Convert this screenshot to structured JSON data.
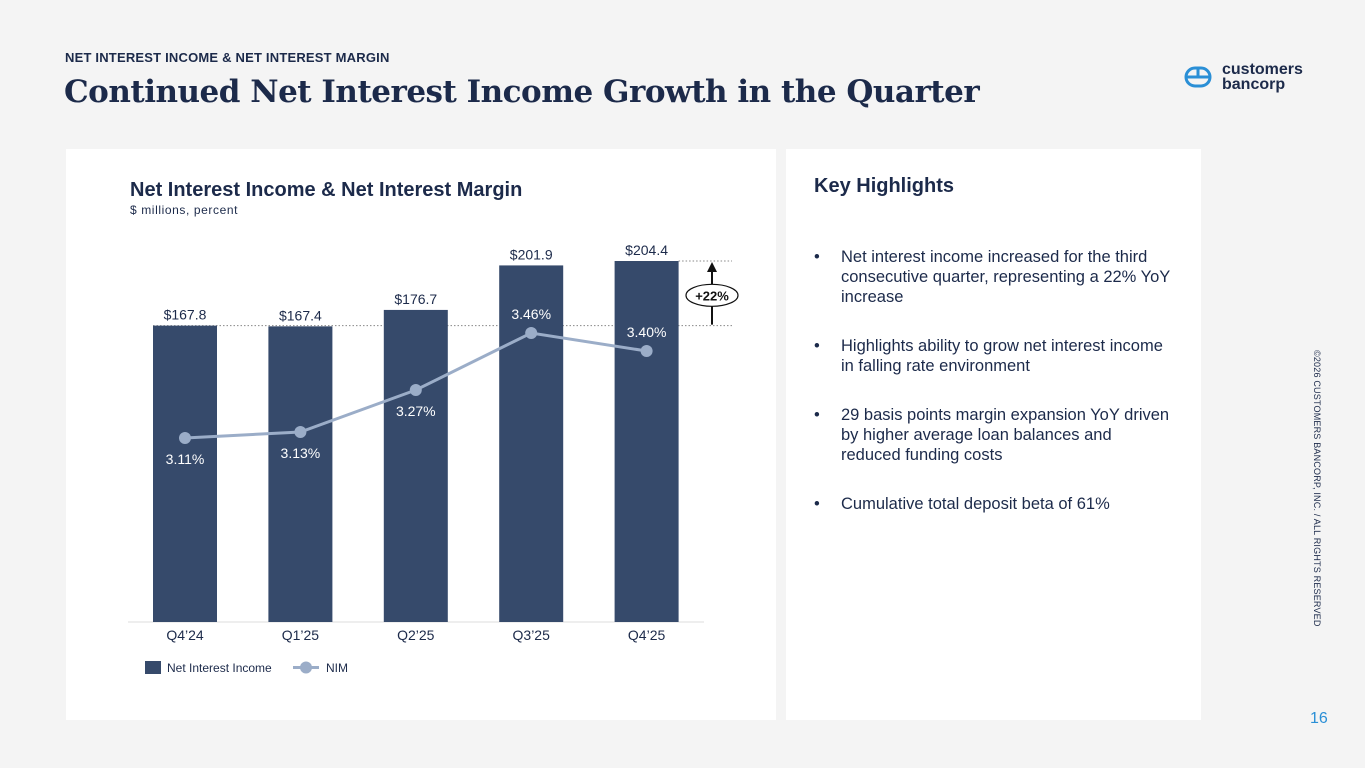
{
  "header": {
    "kicker": "NET INTEREST INCOME & NET INTEREST MARGIN",
    "title": "Continued Net Interest Income Growth in the Quarter"
  },
  "logo": {
    "line1": "customers",
    "line2": "bancorp",
    "icon": "customers-bancorp-logo-icon"
  },
  "chart_data": {
    "type": "bar",
    "title": "Net Interest Income & Net Interest Margin",
    "subtitle": "$ millions, percent",
    "categories": [
      "Q4’24",
      "Q1’25",
      "Q2’25",
      "Q3’25",
      "Q4’25"
    ],
    "series": [
      {
        "name": "Net Interest Income",
        "type": "bar",
        "values": [
          167.8,
          167.4,
          176.7,
          201.9,
          204.4
        ],
        "labels": [
          "$167.8",
          "$167.4",
          "$176.7",
          "$201.9",
          "$204.4"
        ],
        "color": "#364a6b"
      },
      {
        "name": "NIM",
        "type": "line",
        "values": [
          3.11,
          3.13,
          3.27,
          3.46,
          3.4
        ],
        "labels": [
          "3.11%",
          "3.13%",
          "3.27%",
          "3.46%",
          "3.40%"
        ],
        "color": "#9badc8"
      }
    ],
    "annotation": {
      "text": "+22%",
      "from_category": "Q4’24",
      "to_category": "Q4’25"
    },
    "legend_position": "bottom-left",
    "grid": false
  },
  "highlights": {
    "title": "Key Highlights",
    "items": [
      "Net interest income increased for the third consecutive quarter, representing a 22% YoY increase",
      "Highlights ability to grow net interest income in falling rate environment",
      "29 basis points margin expansion YoY driven by higher average loan balances and reduced funding costs",
      "Cumulative total deposit beta of 61%"
    ]
  },
  "footer": {
    "copyright": "©2026 CUSTOMERS BANCORP, INC. / ALL RIGHTS RESERVED",
    "page_number": "16"
  },
  "colors": {
    "navy": "#1c2a4a",
    "bar": "#364a6b",
    "line": "#9badc8",
    "accent": "#2a8fd6"
  }
}
